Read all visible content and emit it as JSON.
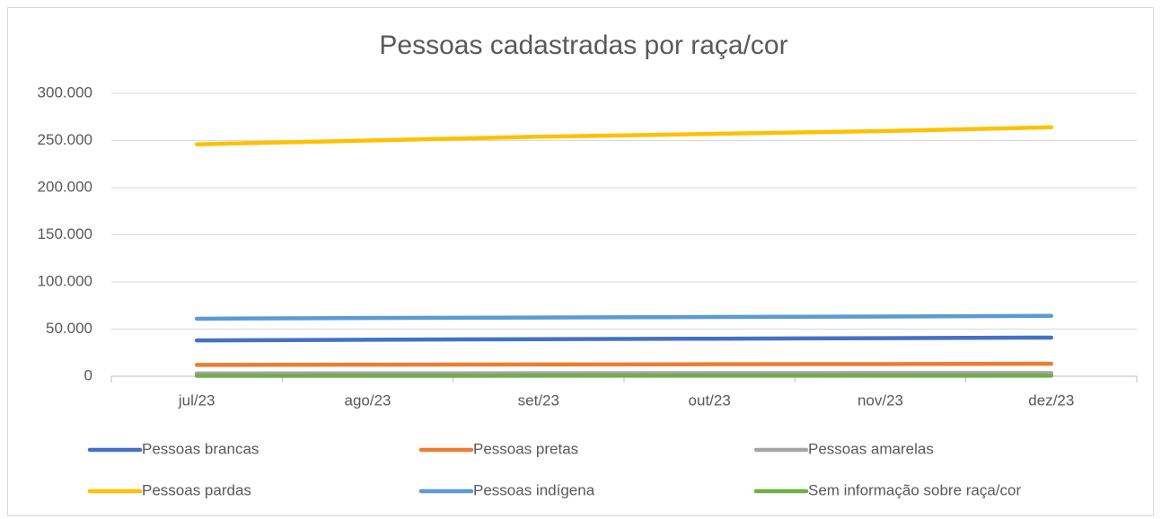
{
  "chart_data": {
    "type": "line",
    "title": "Pessoas cadastradas por raça/cor",
    "categories": [
      "jul/23",
      "ago/23",
      "set/23",
      "out/23",
      "nov/23",
      "dez/23"
    ],
    "series": [
      {
        "name": "Pessoas brancas",
        "color": "#4472c4",
        "values": [
          38000,
          38700,
          39300,
          39800,
          40300,
          41000
        ]
      },
      {
        "name": "Pessoas pretas",
        "color": "#ed7d31",
        "values": [
          12000,
          12300,
          12500,
          12700,
          12900,
          13200
        ]
      },
      {
        "name": "Pessoas amarelas",
        "color": "#a5a5a5",
        "values": [
          3000,
          3100,
          3200,
          3300,
          3400,
          3500
        ]
      },
      {
        "name": "Pessoas pardas",
        "color": "#ffc000",
        "values": [
          246000,
          250000,
          254000,
          257000,
          260000,
          264000
        ]
      },
      {
        "name": "Pessoas indígena",
        "color": "#5b9bd5",
        "values": [
          61000,
          61800,
          62300,
          62800,
          63300,
          64000
        ]
      },
      {
        "name": "Sem informação sobre raça/cor",
        "color": "#70ad47",
        "values": [
          500,
          520,
          540,
          560,
          580,
          600
        ]
      }
    ],
    "ylim": [
      0,
      300000
    ],
    "yticks": [
      0,
      {
        "value": 50000,
        "label": "50.000"
      },
      {
        "value": 100000,
        "label": "100.000"
      },
      {
        "value": 150000,
        "label": "150.000"
      },
      {
        "value": 200000,
        "label": "200.000"
      },
      {
        "value": 250000,
        "label": "250.000"
      },
      {
        "value": 300000,
        "label": "300.000"
      }
    ],
    "grid": true,
    "legend": "bottom"
  }
}
